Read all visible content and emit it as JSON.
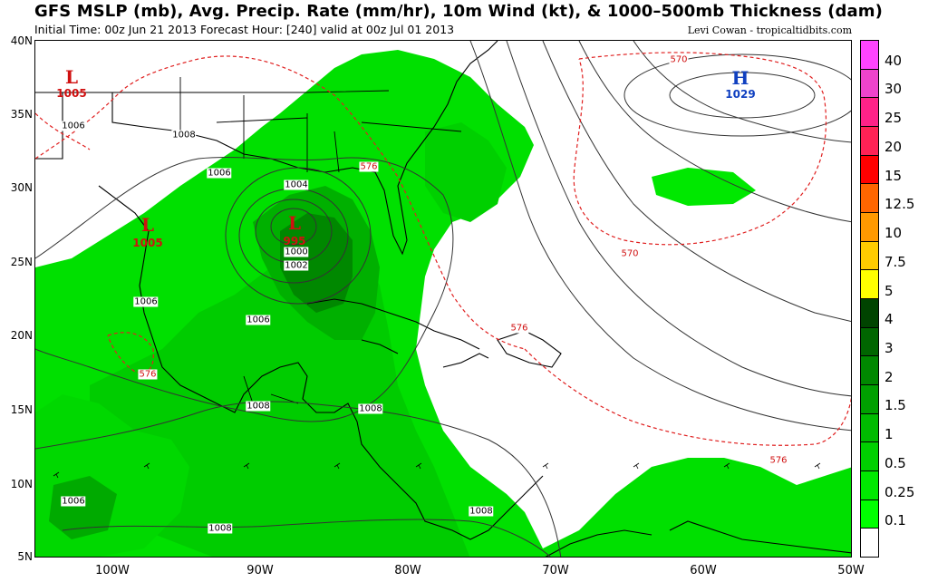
{
  "header": {
    "title": "GFS MSLP (mb), Avg. Precip. Rate (mm/hr), 10m Wind (kt), & 1000–500mb Thickness (dam)",
    "subtitle": "Initial Time: 00z Jun 21 2013 Forecast Hour: [240] valid at 00z Jul 01 2013",
    "credit": "Levi Cowan - tropicaltidbits.com"
  },
  "axes": {
    "lat_labels": [
      "40N",
      "35N",
      "30N",
      "25N",
      "20N",
      "15N",
      "10N",
      "5N"
    ],
    "lon_labels": [
      "100W",
      "90W",
      "80W",
      "70W",
      "60W",
      "50W"
    ]
  },
  "pressure_centers": [
    {
      "type": "L",
      "value": "1005",
      "color": "#d01010"
    },
    {
      "type": "L",
      "value": "1005",
      "color": "#d01010"
    },
    {
      "type": "L",
      "value": "995",
      "color": "#d01010"
    },
    {
      "type": "H",
      "value": "1029",
      "color": "#1040c0"
    }
  ],
  "isobar_labels": [
    "1006",
    "1008",
    "1006",
    "1004",
    "1000",
    "1002",
    "1006",
    "1006",
    "1008",
    "1008",
    "1006",
    "1008",
    "1008"
  ],
  "thickness_labels": [
    "570",
    "576",
    "570",
    "576",
    "576",
    "576"
  ],
  "colorbar": {
    "labels": [
      "40",
      "30",
      "25",
      "20",
      "15",
      "12.5",
      "10",
      "7.5",
      "5",
      "4",
      "3",
      "2",
      "1.5",
      "1",
      "0.5",
      "0.25",
      "0.1"
    ],
    "colors": [
      "#ff44ff",
      "#ee44cc",
      "#ff2288",
      "#ff2255",
      "#ff0000",
      "#ff6600",
      "#ff9900",
      "#ffcc00",
      "#ffff00",
      "#004400",
      "#006600",
      "#008800",
      "#00a000",
      "#00bb00",
      "#00d000",
      "#00e800",
      "#00ff00",
      "#ffffff"
    ]
  }
}
